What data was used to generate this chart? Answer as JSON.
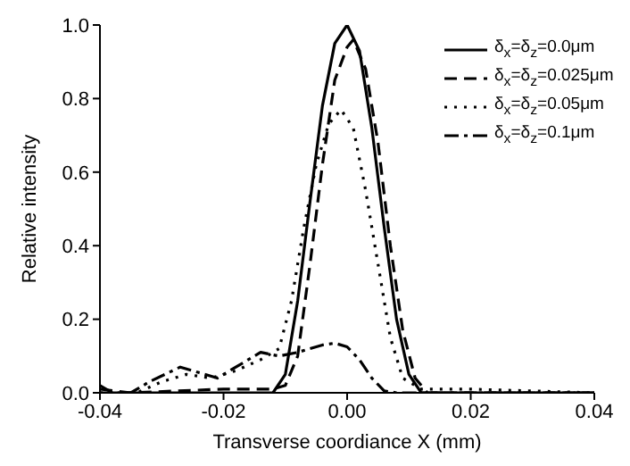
{
  "chart_data": {
    "type": "line",
    "xlabel": "Transverse coordiance X (mm)",
    "ylabel": "Relative intensity",
    "xlim": [
      -0.04,
      0.04
    ],
    "ylim": [
      0,
      1
    ],
    "xticks": [
      -0.04,
      -0.02,
      {
        "value": 0,
        "label": "0.00"
      },
      0.02,
      0.04
    ],
    "yticks": [
      {
        "value": 0,
        "label": "0.0"
      },
      0.2,
      0.4,
      0.6,
      0.8,
      {
        "value": 1,
        "label": "1.0"
      }
    ],
    "legend": "top right",
    "marker": "none",
    "series": [
      {
        "name": "δ$_{x}$=δ$_{z}$=0.0μm",
        "color": "#000000",
        "line_style": "solid",
        "x": [
          -0.04,
          -0.012,
          -0.01,
          -0.008,
          -0.006,
          -0.004,
          -0.002,
          0,
          0.002,
          0.004,
          0.006,
          0.008,
          0.01,
          0.012,
          0.04
        ],
        "values": [
          0,
          0,
          0.05,
          0.25,
          0.52,
          0.78,
          0.95,
          1.0,
          0.93,
          0.72,
          0.45,
          0.2,
          0.05,
          0,
          0
        ]
      },
      {
        "name": "δ$_{x}$=δ$_{z}$=0.025μm",
        "color": "#000000",
        "line_style": "dashed",
        "x": [
          -0.04,
          -0.035,
          -0.02,
          -0.012,
          -0.01,
          -0.008,
          -0.006,
          -0.004,
          -0.002,
          0,
          0.001,
          0.003,
          0.005,
          0.007,
          0.009,
          0.011,
          0.013,
          0.04
        ],
        "values": [
          0.01,
          0,
          0.01,
          0.01,
          0.02,
          0.1,
          0.35,
          0.62,
          0.85,
          0.94,
          0.96,
          0.88,
          0.68,
          0.4,
          0.17,
          0.04,
          0,
          0
        ]
      },
      {
        "name": "δ$_{x}$=δ$_{z}$=0.05μm",
        "color": "#000000",
        "line_style": "dotted",
        "x": [
          -0.04,
          -0.034,
          -0.03,
          -0.026,
          -0.022,
          -0.018,
          -0.014,
          -0.011,
          -0.009,
          -0.007,
          -0.005,
          -0.003,
          -0.001,
          0.001,
          0.003,
          0.005,
          0.007,
          0.009,
          0.012,
          0.02,
          0.04
        ],
        "values": [
          0,
          0,
          0.03,
          0.05,
          0.04,
          0.06,
          0.09,
          0.12,
          0.25,
          0.45,
          0.62,
          0.73,
          0.77,
          0.72,
          0.55,
          0.35,
          0.15,
          0.04,
          0.01,
          0.01,
          0
        ]
      },
      {
        "name": "δ$_{x}$=δ$_{z}$=0.1μm",
        "color": "#000000",
        "line_style": "dashdot",
        "x": [
          -0.04,
          -0.038,
          -0.035,
          -0.032,
          -0.027,
          -0.024,
          -0.021,
          -0.018,
          -0.014,
          -0.011,
          -0.008,
          -0.004,
          -0.002,
          0,
          0.002,
          0.004,
          0.006,
          0.008,
          0.04
        ],
        "values": [
          0.02,
          0,
          0,
          0.03,
          0.07,
          0.055,
          0.04,
          0.07,
          0.11,
          0.1,
          0.11,
          0.13,
          0.135,
          0.125,
          0.09,
          0.04,
          0.005,
          0,
          0
        ]
      }
    ]
  }
}
